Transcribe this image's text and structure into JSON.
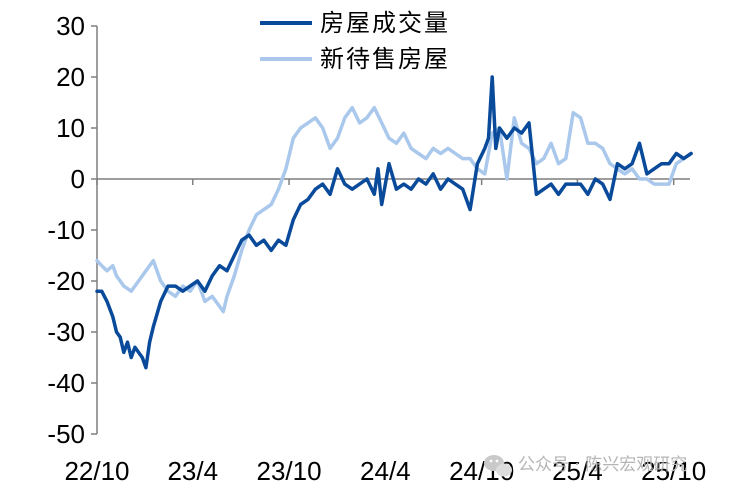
{
  "chart_data": {
    "type": "line",
    "title": "",
    "xlabel": "",
    "ylabel": "",
    "ylim": [
      -50,
      30
    ],
    "yticks": [
      30,
      20,
      10,
      0,
      -10,
      -20,
      -30,
      -40,
      -50
    ],
    "xlim": [
      "2022-10",
      "2025-11"
    ],
    "xticks": [
      "22/10",
      "23/4",
      "23/10",
      "24/4",
      "24/10",
      "25/4",
      "25/10"
    ],
    "grid": false,
    "legend_position": "top-center",
    "series": [
      {
        "name": "房屋成交量",
        "color": "#0a4a9a",
        "points": [
          [
            "2022-10-01",
            -22
          ],
          [
            "2022-10-10",
            -22
          ],
          [
            "2022-10-20",
            -24
          ],
          [
            "2022-10-31",
            -27
          ],
          [
            "2022-11-07",
            -30
          ],
          [
            "2022-11-14",
            -31
          ],
          [
            "2022-11-21",
            -34
          ],
          [
            "2022-11-28",
            -32
          ],
          [
            "2022-12-05",
            -35
          ],
          [
            "2022-12-12",
            -33
          ],
          [
            "2022-12-19",
            -34
          ],
          [
            "2022-12-26",
            -35
          ],
          [
            "2023-01-02",
            -37
          ],
          [
            "2023-01-09",
            -32
          ],
          [
            "2023-01-16",
            -29
          ],
          [
            "2023-01-30",
            -24
          ],
          [
            "2023-02-13",
            -21
          ],
          [
            "2023-02-27",
            -21
          ],
          [
            "2023-03-13",
            -22
          ],
          [
            "2023-03-27",
            -21
          ],
          [
            "2023-04-10",
            -20
          ],
          [
            "2023-04-24",
            -22
          ],
          [
            "2023-05-08",
            -19
          ],
          [
            "2023-05-22",
            -17
          ],
          [
            "2023-06-05",
            -18
          ],
          [
            "2023-06-19",
            -15
          ],
          [
            "2023-07-03",
            -12
          ],
          [
            "2023-07-17",
            -11
          ],
          [
            "2023-07-31",
            -13
          ],
          [
            "2023-08-14",
            -12
          ],
          [
            "2023-08-28",
            -14
          ],
          [
            "2023-09-11",
            -12
          ],
          [
            "2023-09-25",
            -13
          ],
          [
            "2023-10-09",
            -8
          ],
          [
            "2023-10-23",
            -5
          ],
          [
            "2023-11-06",
            -4
          ],
          [
            "2023-11-20",
            -2
          ],
          [
            "2023-12-04",
            -1
          ],
          [
            "2023-12-18",
            -3
          ],
          [
            "2024-01-01",
            2
          ],
          [
            "2024-01-15",
            -1
          ],
          [
            "2024-01-29",
            -2
          ],
          [
            "2024-02-12",
            -1
          ],
          [
            "2024-02-26",
            0
          ],
          [
            "2024-03-11",
            -3
          ],
          [
            "2024-03-18",
            2
          ],
          [
            "2024-03-25",
            -5
          ],
          [
            "2024-04-08",
            3
          ],
          [
            "2024-04-22",
            -2
          ],
          [
            "2024-05-06",
            -1
          ],
          [
            "2024-05-20",
            -2
          ],
          [
            "2024-06-03",
            0
          ],
          [
            "2024-06-17",
            -1
          ],
          [
            "2024-07-01",
            1
          ],
          [
            "2024-07-15",
            -2
          ],
          [
            "2024-07-29",
            0
          ],
          [
            "2024-08-12",
            -1
          ],
          [
            "2024-08-26",
            -2
          ],
          [
            "2024-09-09",
            -6
          ],
          [
            "2024-09-23",
            3
          ],
          [
            "2024-10-07",
            6
          ],
          [
            "2024-10-14",
            8
          ],
          [
            "2024-10-21",
            20
          ],
          [
            "2024-10-28",
            6
          ],
          [
            "2024-11-04",
            10
          ],
          [
            "2024-11-18",
            8
          ],
          [
            "2024-12-02",
            10
          ],
          [
            "2024-12-16",
            9
          ],
          [
            "2024-12-30",
            11
          ],
          [
            "2025-01-13",
            -3
          ],
          [
            "2025-01-27",
            -2
          ],
          [
            "2025-02-10",
            -1
          ],
          [
            "2025-02-24",
            -3
          ],
          [
            "2025-03-10",
            -1
          ],
          [
            "2025-03-24",
            -1
          ],
          [
            "2025-04-07",
            -1
          ],
          [
            "2025-04-21",
            -3
          ],
          [
            "2025-05-05",
            0
          ],
          [
            "2025-05-19",
            -1
          ],
          [
            "2025-06-02",
            -4
          ],
          [
            "2025-06-16",
            3
          ],
          [
            "2025-06-30",
            2
          ],
          [
            "2025-07-14",
            3
          ],
          [
            "2025-07-28",
            7
          ],
          [
            "2025-08-11",
            1
          ],
          [
            "2025-08-25",
            2
          ],
          [
            "2025-09-08",
            3
          ],
          [
            "2025-09-22",
            3
          ],
          [
            "2025-10-06",
            5
          ],
          [
            "2025-10-20",
            4
          ],
          [
            "2025-11-03",
            5
          ]
        ]
      },
      {
        "name": "新待售房屋",
        "color": "#a9c8ec",
        "points": [
          [
            "2022-10-01",
            -16
          ],
          [
            "2022-10-10",
            -17
          ],
          [
            "2022-10-20",
            -18
          ],
          [
            "2022-10-31",
            -17
          ],
          [
            "2022-11-07",
            -19
          ],
          [
            "2022-11-14",
            -20
          ],
          [
            "2022-11-21",
            -21
          ],
          [
            "2022-12-05",
            -22
          ],
          [
            "2022-12-19",
            -20
          ],
          [
            "2023-01-02",
            -18
          ],
          [
            "2023-01-16",
            -16
          ],
          [
            "2023-01-30",
            -20
          ],
          [
            "2023-02-13",
            -22
          ],
          [
            "2023-02-27",
            -23
          ],
          [
            "2023-03-13",
            -21
          ],
          [
            "2023-03-27",
            -22
          ],
          [
            "2023-04-10",
            -20
          ],
          [
            "2023-04-24",
            -24
          ],
          [
            "2023-05-08",
            -23
          ],
          [
            "2023-05-22",
            -25
          ],
          [
            "2023-05-29",
            -26
          ],
          [
            "2023-06-05",
            -23
          ],
          [
            "2023-06-19",
            -19
          ],
          [
            "2023-07-03",
            -14
          ],
          [
            "2023-07-17",
            -10
          ],
          [
            "2023-07-31",
            -7
          ],
          [
            "2023-08-14",
            -6
          ],
          [
            "2023-08-28",
            -5
          ],
          [
            "2023-09-11",
            -2
          ],
          [
            "2023-09-25",
            2
          ],
          [
            "2023-10-09",
            8
          ],
          [
            "2023-10-23",
            10
          ],
          [
            "2023-11-06",
            11
          ],
          [
            "2023-11-20",
            12
          ],
          [
            "2023-12-04",
            10
          ],
          [
            "2023-12-18",
            6
          ],
          [
            "2024-01-01",
            8
          ],
          [
            "2024-01-15",
            12
          ],
          [
            "2024-01-29",
            14
          ],
          [
            "2024-02-12",
            11
          ],
          [
            "2024-02-26",
            12
          ],
          [
            "2024-03-11",
            14
          ],
          [
            "2024-03-25",
            11
          ],
          [
            "2024-04-08",
            8
          ],
          [
            "2024-04-22",
            7
          ],
          [
            "2024-05-06",
            9
          ],
          [
            "2024-05-20",
            6
          ],
          [
            "2024-06-03",
            5
          ],
          [
            "2024-06-17",
            4
          ],
          [
            "2024-07-01",
            6
          ],
          [
            "2024-07-15",
            5
          ],
          [
            "2024-07-29",
            6
          ],
          [
            "2024-08-12",
            5
          ],
          [
            "2024-08-26",
            4
          ],
          [
            "2024-09-09",
            4
          ],
          [
            "2024-09-23",
            2
          ],
          [
            "2024-10-07",
            1
          ],
          [
            "2024-10-21",
            9
          ],
          [
            "2024-11-04",
            10
          ],
          [
            "2024-11-18",
            0
          ],
          [
            "2024-12-02",
            12
          ],
          [
            "2024-12-16",
            7
          ],
          [
            "2024-12-30",
            6
          ],
          [
            "2025-01-13",
            3
          ],
          [
            "2025-01-27",
            4
          ],
          [
            "2025-02-10",
            7
          ],
          [
            "2025-02-24",
            3
          ],
          [
            "2025-03-10",
            4
          ],
          [
            "2025-03-24",
            13
          ],
          [
            "2025-04-07",
            12
          ],
          [
            "2025-04-21",
            7
          ],
          [
            "2025-05-05",
            7
          ],
          [
            "2025-05-19",
            6
          ],
          [
            "2025-06-02",
            3
          ],
          [
            "2025-06-16",
            2
          ],
          [
            "2025-06-30",
            1
          ],
          [
            "2025-07-14",
            2
          ],
          [
            "2025-07-28",
            0
          ],
          [
            "2025-08-11",
            0
          ],
          [
            "2025-08-25",
            -1
          ],
          [
            "2025-09-08",
            -1
          ],
          [
            "2025-09-22",
            -1
          ],
          [
            "2025-10-06",
            3
          ],
          [
            "2025-10-20",
            4
          ],
          [
            "2025-11-03",
            5
          ]
        ]
      }
    ]
  },
  "watermark": {
    "text": "公众号 · 陈兴宏观研究",
    "icon": "wechat-icon"
  }
}
